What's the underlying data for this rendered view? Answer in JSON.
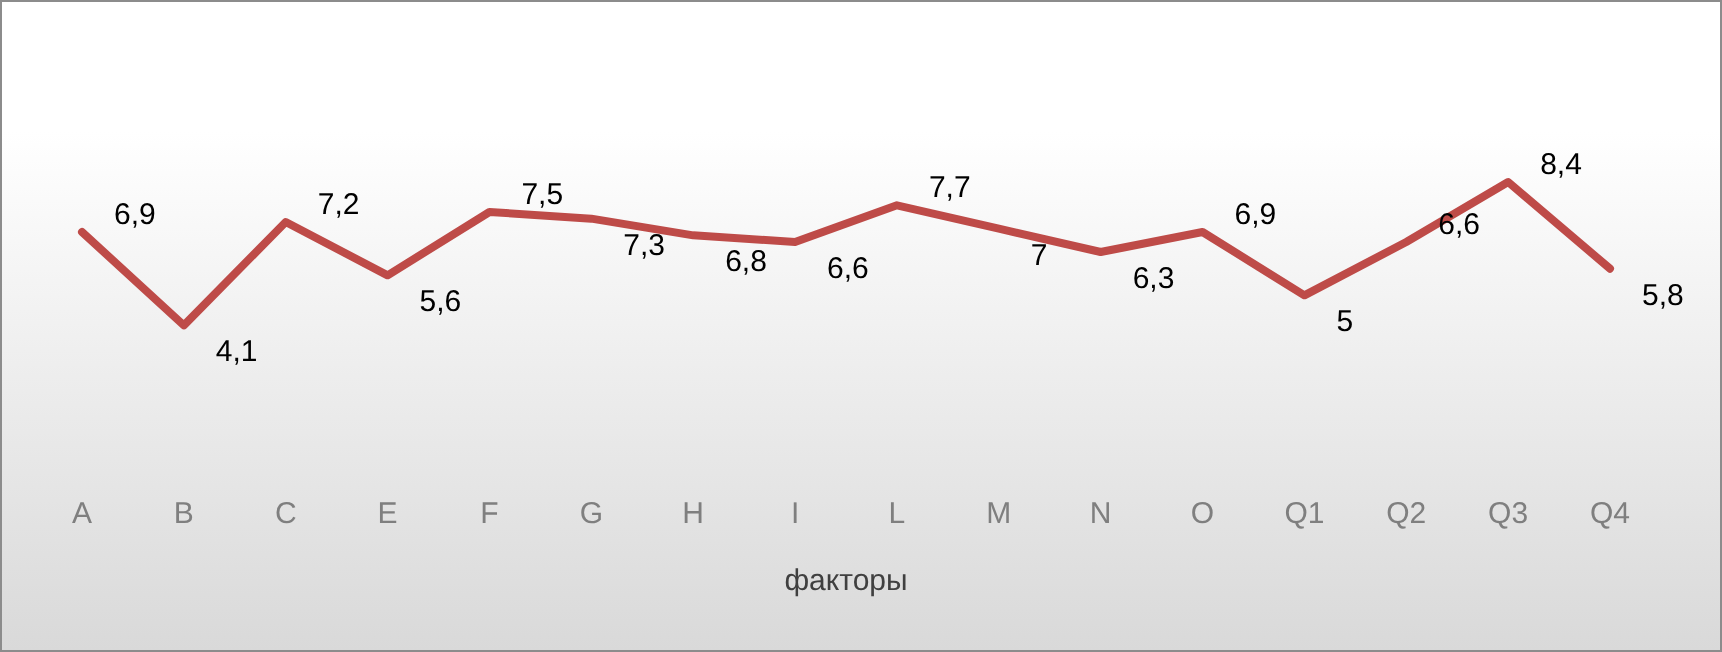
{
  "chart_data": {
    "type": "line",
    "xlabel": "факторы",
    "categories": [
      "A",
      "B",
      "C",
      "E",
      "F",
      "G",
      "H",
      "I",
      "L",
      "M",
      "N",
      "O",
      "Q1",
      "Q2",
      "Q3",
      "Q4"
    ],
    "series": [
      {
        "color": "#be4b48",
        "values": [
          6.9,
          4.1,
          7.2,
          5.6,
          7.5,
          7.3,
          6.8,
          6.6,
          7.7,
          7,
          6.3,
          6.9,
          5,
          6.6,
          8.4,
          5.8
        ],
        "value_labels": [
          "6,9",
          "4,1",
          "7,2",
          "5,6",
          "7,5",
          "7,3",
          "6,8",
          "6,6",
          "7,7",
          "7",
          "6,3",
          "6,9",
          "5",
          "6,6",
          "8,4",
          "5,8"
        ]
      }
    ],
    "grid": false,
    "legend": false
  }
}
